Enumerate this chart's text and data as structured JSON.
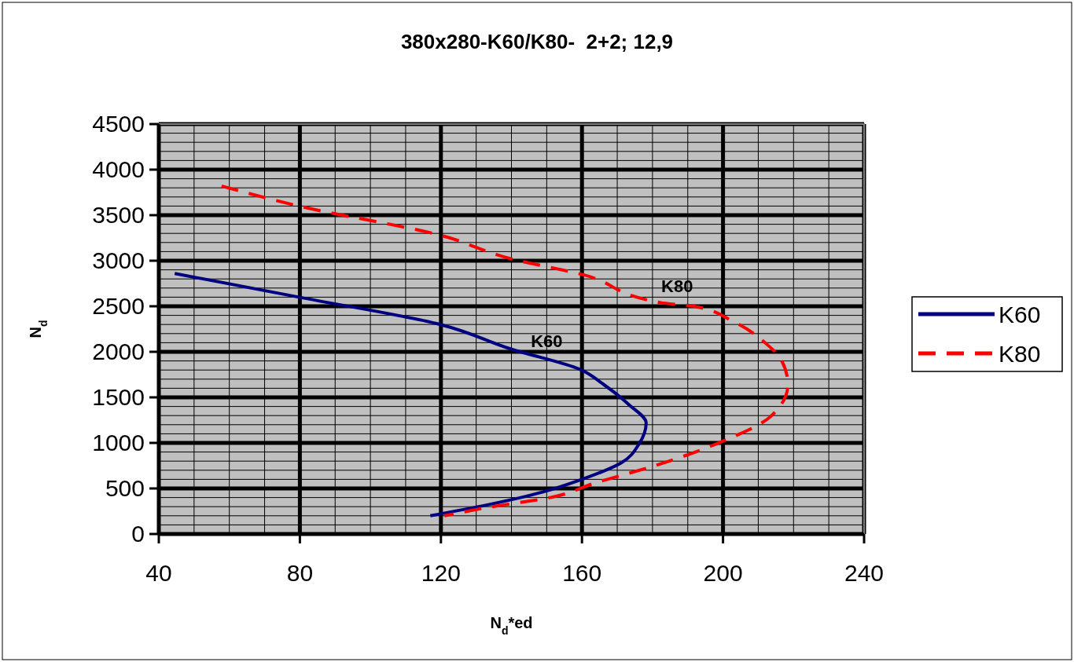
{
  "chart_data": {
    "type": "line",
    "title": "380x280-K60/K80-  2+2; 12,9",
    "xlabel": "N$_{d}$*ed",
    "ylabel": "N$_{d}$",
    "xlim": [
      40,
      240
    ],
    "xticks": [
      40,
      80,
      120,
      160,
      200,
      240
    ],
    "ylim": [
      0,
      4500
    ],
    "yticks": [
      0,
      500,
      1000,
      1500,
      2000,
      2500,
      3000,
      3500,
      4000,
      4500
    ],
    "grid": true,
    "legend": "right",
    "series": [
      {
        "name": "K60",
        "color": "#000080",
        "line_style": "solid",
        "x": [
          44.5,
          79.7,
          119.8,
          139.9,
          159.3,
          166.2,
          173.3,
          178.2,
          176.2,
          171.1,
          160,
          148.8,
          133.2,
          117
        ],
        "values": [
          2860,
          2600,
          2300,
          2030,
          1810,
          1640,
          1420,
          1220,
          990,
          780,
          600,
          460,
          320,
          200
        ]
      },
      {
        "name": "K80",
        "color": "#ff0000",
        "line_style": "dashed",
        "x": [
          57.8,
          79.7,
          119.8,
          140,
          160,
          182.3,
          191.8,
          203,
          212.8,
          216.4,
          218.4,
          213.5,
          199.4,
          180.7,
          163.7,
          151,
          133,
          121
        ],
        "values": [
          3820,
          3600,
          3280,
          3020,
          2850,
          2540,
          2500,
          2330,
          2070,
          1920,
          1640,
          1290,
          1010,
          750,
          560,
          400,
          290,
          200
        ]
      }
    ],
    "annotations": [
      {
        "text": "K60",
        "x": 150,
        "y": 1915
      },
      {
        "text": "K80",
        "x": 187,
        "y": 2520
      }
    ]
  }
}
